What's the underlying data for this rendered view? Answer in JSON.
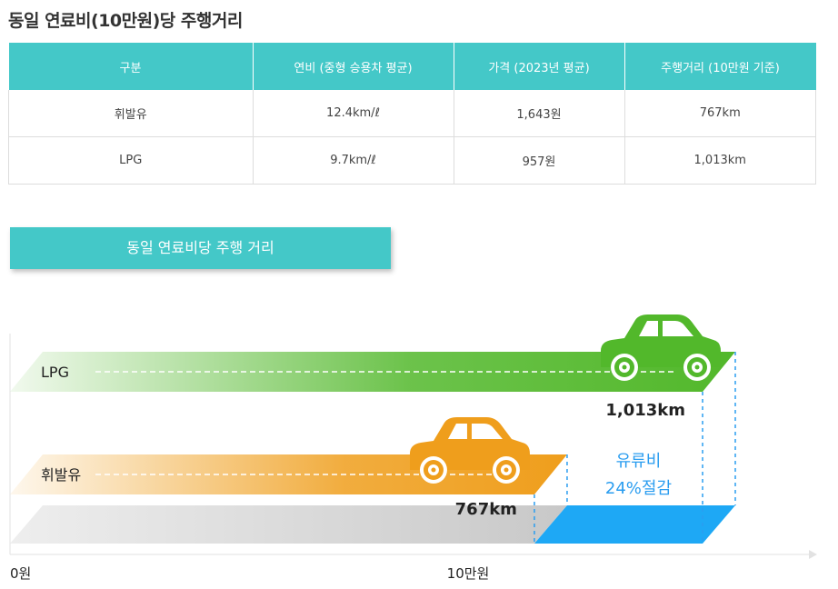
{
  "title": "동일 연료비(10만원)당 주행거리",
  "table": {
    "headers": [
      "구분",
      "연비 (중형 승용차 평균)",
      "가격 (2023년 평균)",
      "주행거리 (10만원 기준)"
    ],
    "rows": [
      [
        "휘발유",
        "12.4km/ℓ",
        "1,643원",
        "767km"
      ],
      [
        "LPG",
        "9.7km/ℓ",
        "957원",
        "1,013km"
      ]
    ]
  },
  "section_label": "동일 연료비당 주행 거리",
  "chart_data": {
    "type": "bar",
    "orientation": "horizontal",
    "categories": [
      "LPG",
      "휘발유"
    ],
    "values": [
      1013,
      767
    ],
    "value_labels": [
      "1,013km",
      "767km"
    ],
    "x_ticks": [
      "0원",
      "10만원"
    ],
    "annotation": {
      "line1": "유류비",
      "line2": "24%절감"
    },
    "colors": {
      "LPG": "#52b82b",
      "휘발유": "#ef9e1c",
      "saving": "#1ea8f5",
      "annotation": "#2a9df0"
    }
  }
}
